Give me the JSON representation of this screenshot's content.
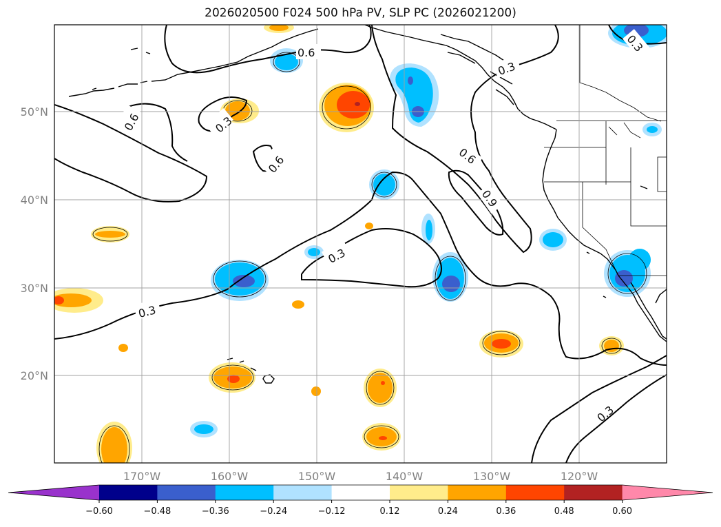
{
  "title": "2026020500 F024 500 hPa PV, SLP PC (2026021200)",
  "map": {
    "lon_ticks": [
      "170°W",
      "160°W",
      "150°W",
      "140°W",
      "130°W",
      "120°W"
    ],
    "lat_ticks": [
      "50°N",
      "40°N",
      "30°N",
      "20°N"
    ],
    "grid": true
  },
  "contour_labels": [
    "0.6",
    "0.3",
    "0.6",
    "0.3",
    "0.6",
    "0.3",
    "0.6",
    "0.9",
    "0.3",
    "0.3",
    "0.3",
    "0.3"
  ],
  "colorbar": {
    "labels": [
      "−0.60",
      "−0.48",
      "−0.36",
      "−0.24",
      "−0.12",
      "0.12",
      "0.24",
      "0.36",
      "0.48",
      "0.60"
    ],
    "colors": [
      "#9932cc",
      "#00008b",
      "#3a5fcd",
      "#00bfff",
      "#b0e2ff",
      "#ffffff",
      "#ffec8b",
      "#ffa500",
      "#ff4500",
      "#b22222",
      "#ff88aa"
    ],
    "extend": "both"
  }
}
